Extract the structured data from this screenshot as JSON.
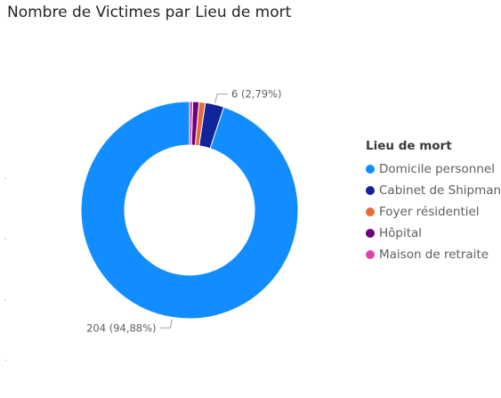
{
  "chart_data": {
    "type": "pie",
    "title": "Nombre de Victimes par Lieu de mort",
    "legend_title": "Lieu de mort",
    "legend_position": "right",
    "donut": true,
    "slices": [
      {
        "name": "Domicile personnel",
        "value": 204,
        "label": "204 (94,88%)",
        "color": "#118DFF"
      },
      {
        "name": "Cabinet de Shipman",
        "value": 6,
        "label": "6 (2,79%)",
        "color": "#12239E"
      },
      {
        "name": "Foyer résidentiel",
        "value": 2,
        "label": "",
        "color": "#E66C37"
      },
      {
        "name": "Hôpital",
        "value": 2,
        "label": "",
        "color": "#6B007B"
      },
      {
        "name": "Maison de retraite",
        "value": 1,
        "label": "",
        "color": "#E044A7"
      }
    ]
  }
}
